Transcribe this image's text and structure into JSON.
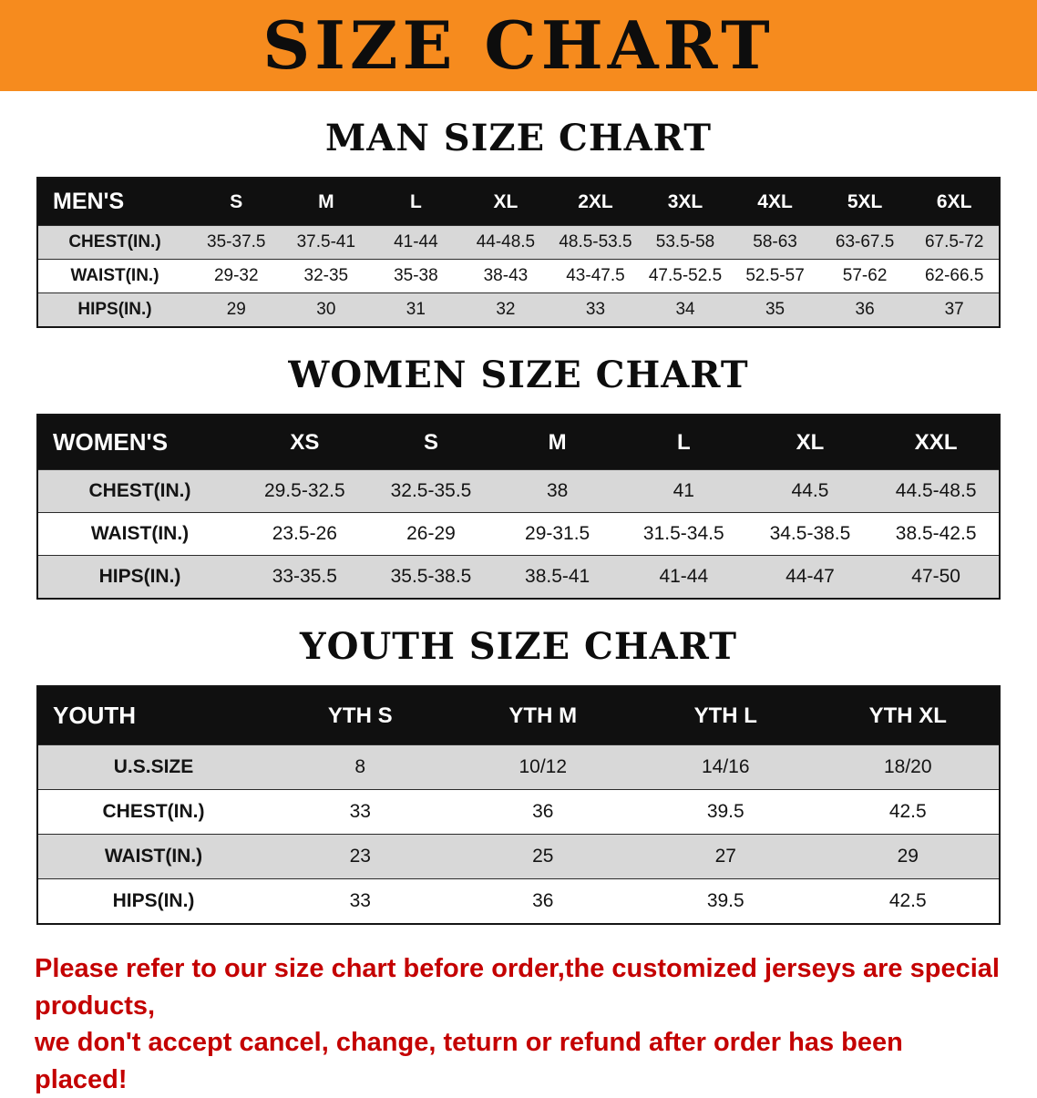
{
  "banner": {
    "title": "SIZE CHART"
  },
  "colors": {
    "banner_bg": "#f68b1e",
    "table_header_bg": "#101010",
    "row_alt_gray": "#d8d8d8",
    "footer_text_red": "#c40000"
  },
  "men": {
    "heading": "MAN SIZE CHART",
    "table": {
      "header": [
        "MEN'S",
        "S",
        "M",
        "L",
        "XL",
        "2XL",
        "3XL",
        "4XL",
        "5XL",
        "6XL"
      ],
      "rows": [
        {
          "label": "CHEST(IN.)",
          "values": [
            "35-37.5",
            "37.5-41",
            "41-44",
            "44-48.5",
            "48.5-53.5",
            "53.5-58",
            "58-63",
            "63-67.5",
            "67.5-72"
          ]
        },
        {
          "label": "WAIST(IN.)",
          "values": [
            "29-32",
            "32-35",
            "35-38",
            "38-43",
            "43-47.5",
            "47.5-52.5",
            "52.5-57",
            "57-62",
            "62-66.5"
          ]
        },
        {
          "label": "HIPS(IN.)",
          "values": [
            "29",
            "30",
            "31",
            "32",
            "33",
            "34",
            "35",
            "36",
            "37"
          ]
        }
      ]
    }
  },
  "women": {
    "heading": "WOMEN SIZE CHART",
    "table": {
      "header": [
        "WOMEN'S",
        "XS",
        "S",
        "M",
        "L",
        "XL",
        "XXL"
      ],
      "rows": [
        {
          "label": "CHEST(IN.)",
          "values": [
            "29.5-32.5",
            "32.5-35.5",
            "38",
            "41",
            "44.5",
            "44.5-48.5"
          ]
        },
        {
          "label": "WAIST(IN.)",
          "values": [
            "23.5-26",
            "26-29",
            "29-31.5",
            "31.5-34.5",
            "34.5-38.5",
            "38.5-42.5"
          ]
        },
        {
          "label": "HIPS(IN.)",
          "values": [
            "33-35.5",
            "35.5-38.5",
            "38.5-41",
            "41-44",
            "44-47",
            "47-50"
          ]
        }
      ]
    }
  },
  "youth": {
    "heading": "YOUTH SIZE CHART",
    "table": {
      "header": [
        "YOUTH",
        "YTH S",
        "YTH M",
        "YTH L",
        "YTH XL"
      ],
      "rows": [
        {
          "label": "U.S.SIZE",
          "values": [
            "8",
            "10/12",
            "14/16",
            "18/20"
          ]
        },
        {
          "label": "CHEST(IN.)",
          "values": [
            "33",
            "36",
            "39.5",
            "42.5"
          ]
        },
        {
          "label": "WAIST(IN.)",
          "values": [
            "23",
            "25",
            "27",
            "29"
          ]
        },
        {
          "label": "HIPS(IN.)",
          "values": [
            "33",
            "36",
            "39.5",
            "42.5"
          ]
        }
      ]
    }
  },
  "footer": {
    "line1": "Please refer to our size chart before order,the customized jerseys are special products,",
    "line2": "we don't accept cancel, change, teturn or refund after order has been placed!"
  }
}
